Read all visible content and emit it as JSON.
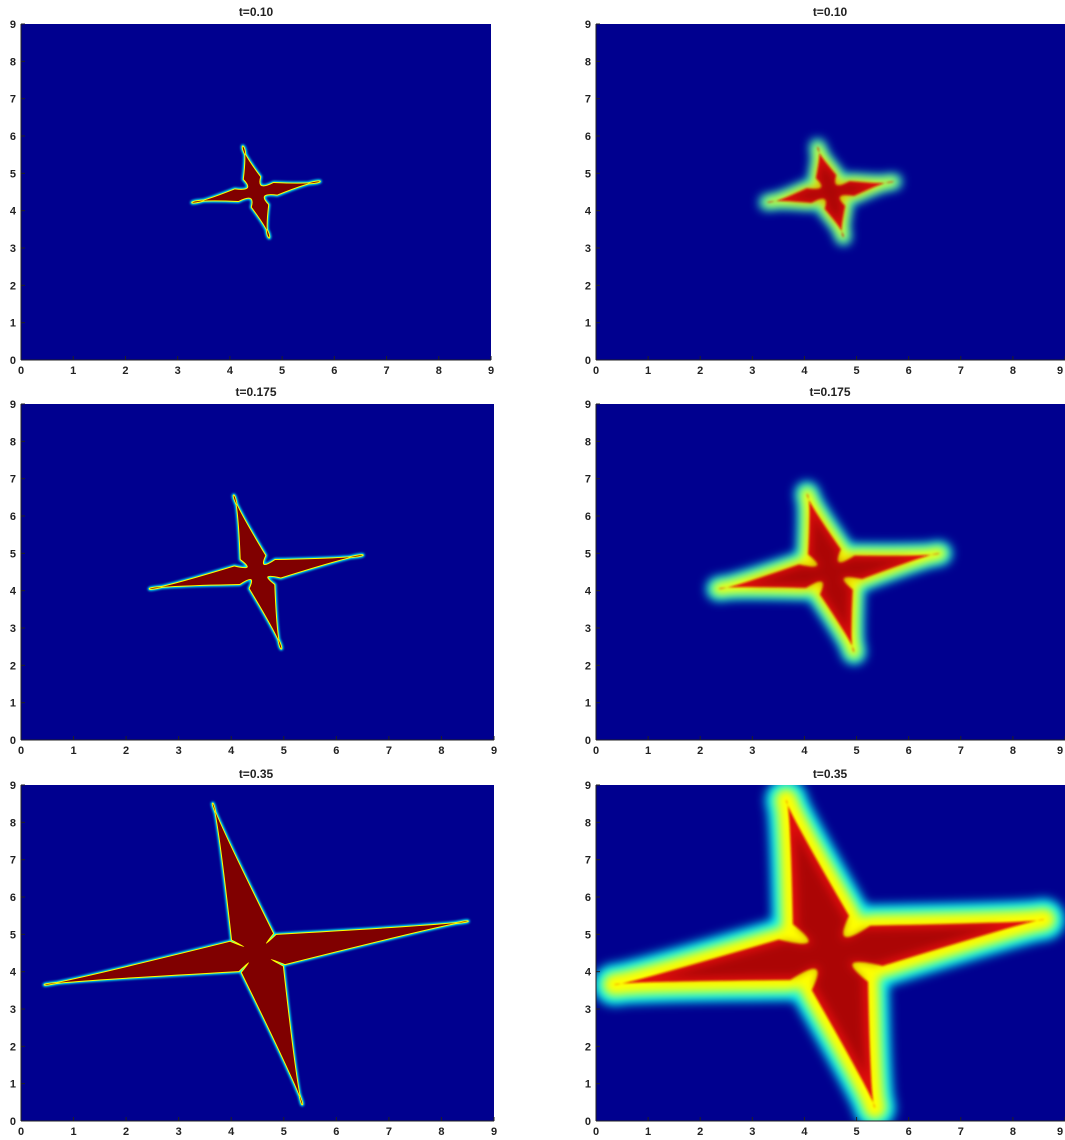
{
  "colors": {
    "background": "#00008F",
    "fill": "#800000",
    "halo_inner": "#FFFF00",
    "halo_outer": "#00FFFF"
  },
  "chart_data": [
    {
      "type": "heatmap",
      "title": "t=0.10",
      "xlim": [
        0,
        9
      ],
      "ylim": [
        0,
        9
      ],
      "xticks": [
        "0",
        "1",
        "2",
        "3",
        "4",
        "5",
        "6",
        "7",
        "8",
        "9"
      ],
      "yticks": [
        "0",
        "1",
        "2",
        "3",
        "4",
        "5",
        "6",
        "7",
        "8",
        "9"
      ],
      "smooth": false,
      "shape": {
        "center": [
          4.5,
          4.5
        ],
        "tips": [
          [
            5.72,
            4.78
          ],
          [
            4.25,
            5.72
          ],
          [
            3.28,
            4.22
          ],
          [
            4.75,
            3.28
          ]
        ],
        "core": 0.38,
        "arm_width": 0.16
      }
    },
    {
      "type": "heatmap",
      "title": "t=0.10",
      "xlim": [
        0,
        9
      ],
      "ylim": [
        0,
        9
      ],
      "xticks": [
        "0",
        "1",
        "2",
        "3",
        "4",
        "5",
        "6",
        "7",
        "8",
        "9"
      ],
      "yticks": [
        "0",
        "1",
        "2",
        "3",
        "4",
        "5",
        "6",
        "7",
        "8",
        "9"
      ],
      "smooth": true,
      "shape": {
        "center": [
          4.5,
          4.5
        ],
        "tips": [
          [
            5.72,
            4.78
          ],
          [
            4.25,
            5.72
          ],
          [
            3.28,
            4.22
          ],
          [
            4.75,
            3.28
          ]
        ],
        "core": 0.42,
        "arm_width": 0.2
      }
    },
    {
      "type": "heatmap",
      "title": "t=0.175",
      "xlim": [
        0,
        9
      ],
      "ylim": [
        0,
        9
      ],
      "xticks": [
        "0",
        "1",
        "2",
        "3",
        "4",
        "5",
        "6",
        "7",
        "8",
        "9"
      ],
      "yticks": [
        "0",
        "1",
        "2",
        "3",
        "4",
        "5",
        "6",
        "7",
        "8",
        "9"
      ],
      "smooth": false,
      "shape": {
        "center": [
          4.5,
          4.5
        ],
        "tips": [
          [
            6.5,
            4.95
          ],
          [
            4.05,
            6.55
          ],
          [
            2.45,
            4.05
          ],
          [
            4.95,
            2.45
          ]
        ],
        "core": 0.4,
        "arm_width": 0.24
      }
    },
    {
      "type": "heatmap",
      "title": "t=0.175",
      "xlim": [
        0,
        9
      ],
      "ylim": [
        0,
        9
      ],
      "xticks": [
        "0",
        "1",
        "2",
        "3",
        "4",
        "5",
        "6",
        "7",
        "8",
        "9"
      ],
      "yticks": [
        "0",
        "1",
        "2",
        "3",
        "4",
        "5",
        "6",
        "7",
        "8",
        "9"
      ],
      "smooth": true,
      "shape": {
        "center": [
          4.5,
          4.5
        ],
        "tips": [
          [
            6.6,
            5.0
          ],
          [
            4.05,
            6.6
          ],
          [
            2.35,
            4.05
          ],
          [
            4.95,
            2.35
          ]
        ],
        "core": 0.55,
        "arm_width": 0.32
      }
    },
    {
      "type": "heatmap",
      "title": "t=0.35",
      "xlim": [
        0,
        9
      ],
      "ylim": [
        0,
        9
      ],
      "xticks": [
        "0",
        "1",
        "2",
        "3",
        "4",
        "5",
        "6",
        "7",
        "8",
        "9"
      ],
      "yticks": [
        "0",
        "1",
        "2",
        "3",
        "4",
        "5",
        "6",
        "7",
        "8",
        "9"
      ],
      "smooth": false,
      "shape": {
        "center": [
          4.5,
          4.5
        ],
        "tips": [
          [
            8.5,
            5.35
          ],
          [
            3.65,
            8.5
          ],
          [
            0.45,
            3.65
          ],
          [
            5.35,
            0.45
          ]
        ],
        "core": 0.45,
        "arm_width": 0.4
      }
    },
    {
      "type": "heatmap",
      "title": "t=0.35",
      "xlim": [
        0,
        9
      ],
      "ylim": [
        0,
        9
      ],
      "xticks": [
        "0",
        "1",
        "2",
        "3",
        "4",
        "5",
        "6",
        "7",
        "8",
        "9"
      ],
      "yticks": [
        "0",
        "1",
        "2",
        "3",
        "4",
        "5",
        "6",
        "7",
        "8",
        "9"
      ],
      "smooth": true,
      "shape": {
        "center": [
          4.5,
          4.5
        ],
        "tips": [
          [
            8.6,
            5.4
          ],
          [
            3.65,
            8.6
          ],
          [
            0.35,
            3.65
          ],
          [
            5.35,
            0.35
          ]
        ],
        "core": 0.9,
        "arm_width": 0.55
      }
    }
  ]
}
